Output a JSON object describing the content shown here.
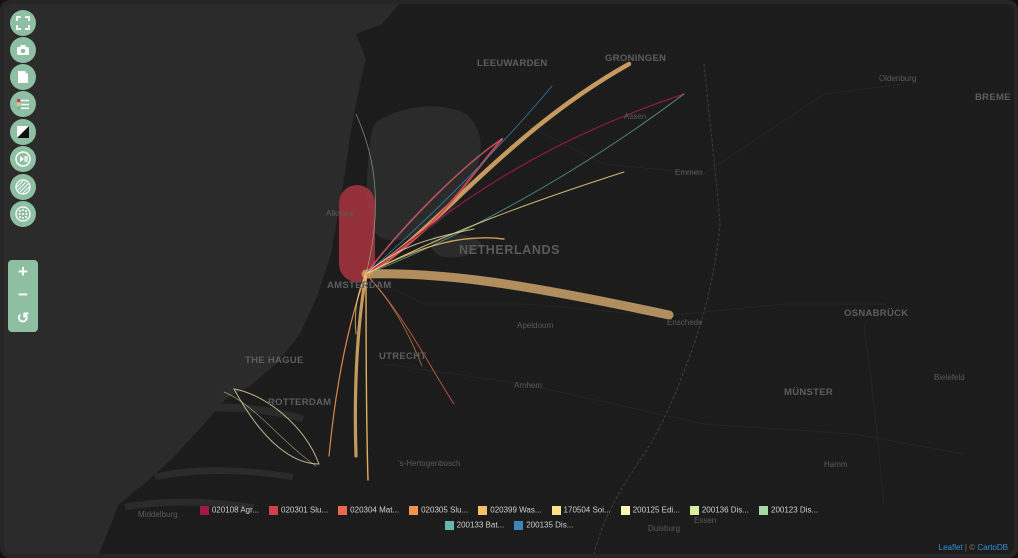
{
  "map": {
    "labels": {
      "leeuwarden": "LEEUWARDEN",
      "groningen": "GRONINGEN",
      "oldenburg": "Oldenburg",
      "bremen": "BREME",
      "assen": "Assen",
      "emmen": "Emmen",
      "alkmaar": "Alkmaar",
      "netherlands": "NETHERLANDS",
      "amsterdam": "AMSTERDAM",
      "apeldoorn": "Apeldoorn",
      "enschede": "Enschede",
      "osnabruck": "OSNABRÜCK",
      "the_hague": "THE HAGUE",
      "utrecht": "UTRECHT",
      "rotterdam": "ROTTERDAM",
      "arnhem": "Arnhem",
      "munster": "MÜNSTER",
      "bielefeld": "Bielefeld",
      "hertogenbosch": "'s-Hertogenbosch",
      "hamm": "Hamm",
      "middelburg": "Middelburg",
      "duisburg": "Duisburg",
      "essen": "Essen"
    }
  },
  "toolbar": {
    "buttons": [
      {
        "name": "fullscreen-icon"
      },
      {
        "name": "camera-icon"
      },
      {
        "name": "document-icon"
      },
      {
        "name": "legend-icon"
      },
      {
        "name": "contrast-icon"
      },
      {
        "name": "play-pause-icon"
      },
      {
        "name": "hatch-pattern-icon"
      },
      {
        "name": "dots-pattern-icon"
      }
    ],
    "zoom_in": "+",
    "zoom_out": "−",
    "reset": "↺"
  },
  "legend": {
    "items": [
      {
        "label": "020108 Agr...",
        "color": "#a11848"
      },
      {
        "label": "020301 Slu...",
        "color": "#d2404f"
      },
      {
        "label": "020304 Mat...",
        "color": "#e8694d"
      },
      {
        "label": "020305 Slu...",
        "color": "#f2944f"
      },
      {
        "label": "020399 Was...",
        "color": "#f7bf6a"
      },
      {
        "label": "170504 Soi...",
        "color": "#fbe08c"
      },
      {
        "label": "200125 Edi...",
        "color": "#fdf6b0"
      },
      {
        "label": "200136 Dis...",
        "color": "#d9ee9d"
      },
      {
        "label": "200123 Dis...",
        "color": "#a3d9a4"
      },
      {
        "label": "200133 Bat...",
        "color": "#64b6ac"
      },
      {
        "label": "200135 Dis...",
        "color": "#3d85b8"
      }
    ]
  },
  "attribution": {
    "leaflet": "Leaflet",
    "separator": " | © ",
    "carto": "CartoDB"
  }
}
